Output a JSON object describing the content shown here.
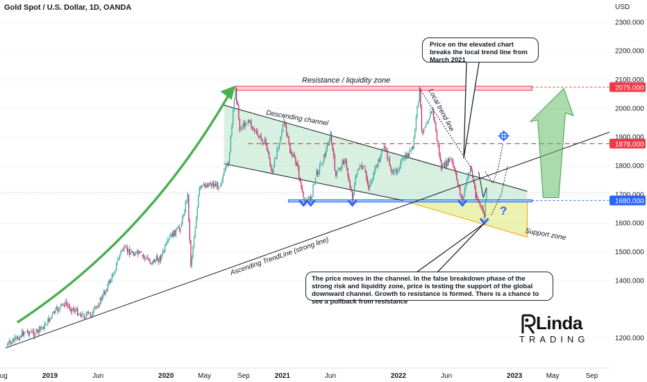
{
  "header": {
    "title": "Gold Spot / U.S. Dollar, 1D, OANDA",
    "currency": "USD"
  },
  "chart_data": {
    "type": "line",
    "series": [
      {
        "points": [
          [
            "2018-08-16",
            1174
          ],
          [
            "2018-09-15",
            1195
          ],
          [
            "2018-10-15",
            1225
          ],
          [
            "2018-11-15",
            1215
          ],
          [
            "2018-12-15",
            1245
          ],
          [
            "2019-01-15",
            1290
          ],
          [
            "2019-02-15",
            1320
          ],
          [
            "2019-03-15",
            1300
          ],
          [
            "2019-04-15",
            1280
          ],
          [
            "2019-05-15",
            1285
          ],
          [
            "2019-06-15",
            1345
          ],
          [
            "2019-07-15",
            1415
          ],
          [
            "2019-08-15",
            1510
          ],
          [
            "2019-09-15",
            1500
          ],
          [
            "2019-10-15",
            1490
          ],
          [
            "2019-11-15",
            1465
          ],
          [
            "2019-12-15",
            1480
          ],
          [
            "2020-01-15",
            1555
          ],
          [
            "2020-02-15",
            1585
          ],
          [
            "2020-03-09",
            1700
          ],
          [
            "2020-03-19",
            1455
          ],
          [
            "2020-04-15",
            1720
          ],
          [
            "2020-05-15",
            1740
          ],
          [
            "2020-06-15",
            1730
          ],
          [
            "2020-07-15",
            1810
          ],
          [
            "2020-08-06",
            2072
          ],
          [
            "2020-08-20",
            1930
          ],
          [
            "2020-09-15",
            1960
          ],
          [
            "2020-10-15",
            1905
          ],
          [
            "2020-11-10",
            1880
          ],
          [
            "2020-11-30",
            1770
          ],
          [
            "2020-12-15",
            1860
          ],
          [
            "2021-01-06",
            1955
          ],
          [
            "2021-01-25",
            1850
          ],
          [
            "2021-02-15",
            1810
          ],
          [
            "2021-03-08",
            1680
          ],
          [
            "2021-03-31",
            1685
          ],
          [
            "2021-04-15",
            1765
          ],
          [
            "2021-05-15",
            1840
          ],
          [
            "2021-06-01",
            1910
          ],
          [
            "2021-06-18",
            1765
          ],
          [
            "2021-07-15",
            1825
          ],
          [
            "2021-08-09",
            1690
          ],
          [
            "2021-08-25",
            1790
          ],
          [
            "2021-09-15",
            1790
          ],
          [
            "2021-09-29",
            1725
          ],
          [
            "2021-10-15",
            1770
          ],
          [
            "2021-11-16",
            1870
          ],
          [
            "2021-12-15",
            1770
          ],
          [
            "2022-01-15",
            1820
          ],
          [
            "2022-02-15",
            1860
          ],
          [
            "2022-03-08",
            2070
          ],
          [
            "2022-03-15",
            1920
          ],
          [
            "2022-04-18",
            1998
          ],
          [
            "2022-05-16",
            1790
          ],
          [
            "2022-06-15",
            1825
          ],
          [
            "2022-07-21",
            1680
          ],
          [
            "2022-08-15",
            1800
          ],
          [
            "2022-09-01",
            1700
          ],
          [
            "2022-09-28",
            1625
          ],
          [
            "2022-10-05",
            1725
          ]
        ]
      }
    ],
    "x_ticks": [
      "Aug",
      "2019",
      "Jun",
      "2020",
      "May",
      "Sep",
      "2021",
      "Jun",
      "2022",
      "Jun",
      "2023",
      "May",
      "Sep"
    ],
    "y_ticks": [
      "2300.000",
      "2200.000",
      "2100.000",
      "2000.000",
      "1900.000",
      "1800.000",
      "1700.000",
      "1600.000",
      "1500.000",
      "1400.000",
      "1200.000"
    ],
    "y_range": [
      1130,
      2350
    ],
    "price_labels": [
      {
        "value": 2075,
        "label": "2075.000",
        "color": "#f23645"
      },
      {
        "value": 1878,
        "label": "1878.000",
        "color": "#f23645"
      },
      {
        "value": 1680,
        "label": "1680.000",
        "color": "#2962ff"
      }
    ],
    "annotations": [
      "Resistance / liquidity zone",
      "Descending channel",
      "Local trend line",
      "Ascending TrendLine (strong line)",
      "Support zone",
      "?"
    ],
    "colors": {
      "up": "#26a69a",
      "down": "#ef5350",
      "candles": "#c2185b",
      "resistance": "#f23645",
      "support_line": "#2962ff",
      "channel_fill": "#b7e4c7",
      "support_zone_fill": "#e6ee9c",
      "arrow": "#4caf50"
    }
  },
  "callouts": {
    "top": "Price on the elevated chart breaks the local trend line from March 2021",
    "bottom": "The price moves in the channel. In the false breakdown phase of the strong risk and liquidity zone, price is testing the support of the global downward channel. Growth to resistance is formed. There is a chance to see a pullback from resistance"
  },
  "logo": {
    "name": "Linda",
    "sub": "TRADING"
  }
}
